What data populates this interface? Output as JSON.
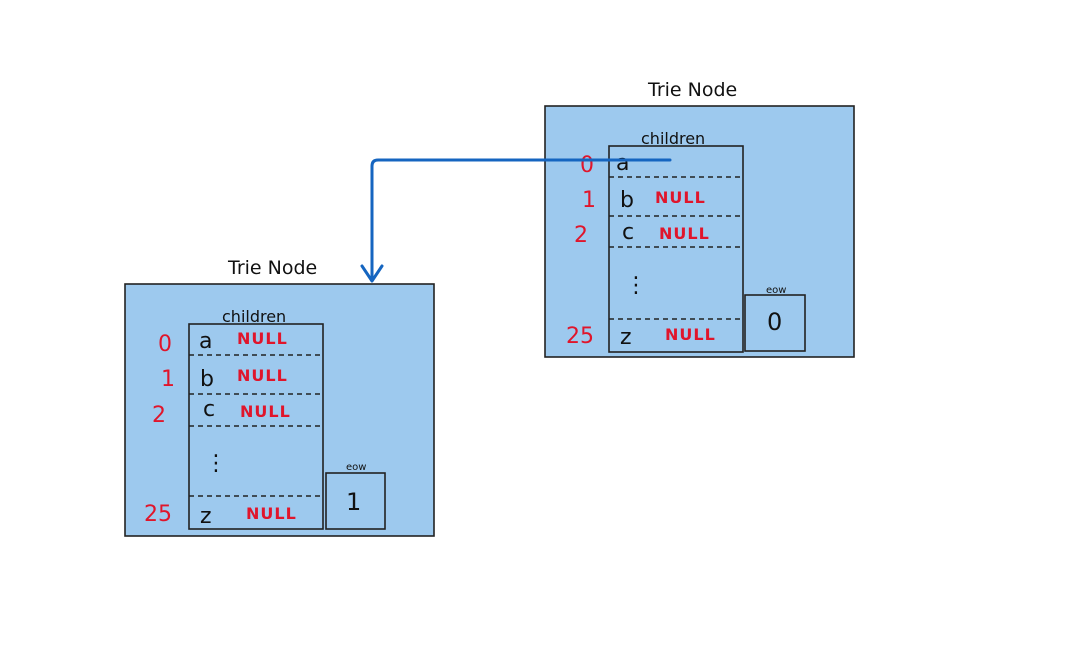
{
  "nodes": [
    {
      "title": "Trie Node",
      "children_label": "children",
      "rows": [
        {
          "index": "0",
          "letter": "a",
          "value": ""
        },
        {
          "index": "1",
          "letter": "b",
          "value": "NULL"
        },
        {
          "index": "2",
          "letter": "c",
          "value": "NULL"
        },
        {
          "index": "25",
          "letter": "z",
          "value": "NULL"
        }
      ],
      "ellipsis": "⋮",
      "eow_label": "eow",
      "eow_value": "0"
    },
    {
      "title": "Trie Node",
      "children_label": "children",
      "rows": [
        {
          "index": "0",
          "letter": "a",
          "value": "NULL"
        },
        {
          "index": "1",
          "letter": "b",
          "value": "NULL"
        },
        {
          "index": "2",
          "letter": "c",
          "value": "NULL"
        },
        {
          "index": "25",
          "letter": "z",
          "value": "NULL"
        }
      ],
      "ellipsis": "⋮",
      "eow_label": "eow",
      "eow_value": "1"
    }
  ],
  "colors": {
    "node_fill": "#9dc9ee",
    "arrow": "#1565c0",
    "index_text": "#e0152b"
  }
}
